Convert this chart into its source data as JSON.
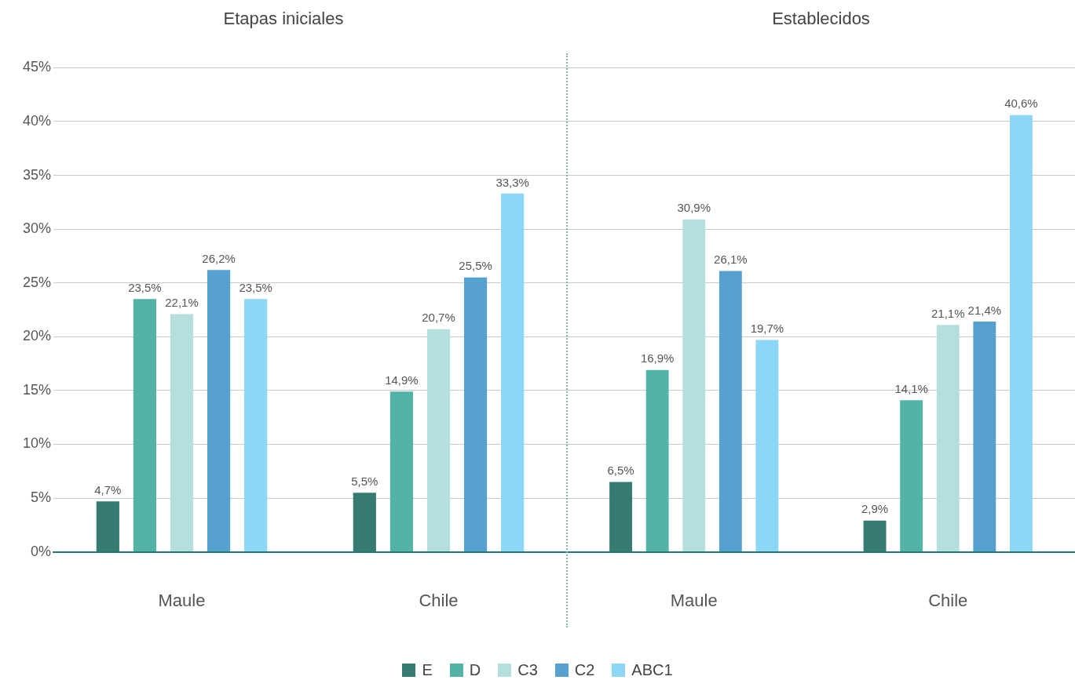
{
  "chart_data": [
    {
      "type": "bar",
      "title": "Etapas iniciales",
      "categories": [
        "Maule",
        "Chile"
      ],
      "series": [
        {
          "name": "E",
          "color": "#367b71",
          "values": [
            4.7,
            5.5
          ],
          "value_labels": [
            "4,7%",
            "5,5%"
          ]
        },
        {
          "name": "D",
          "color": "#52b3a6",
          "values": [
            23.5,
            14.9
          ],
          "value_labels": [
            "23,5%",
            "14,9%"
          ]
        },
        {
          "name": "C3",
          "color": "#b4dfdc",
          "values": [
            22.1,
            20.7
          ],
          "value_labels": [
            "22,1%",
            "20,7%"
          ]
        },
        {
          "name": "C2",
          "color": "#56a1d0",
          "values": [
            26.2,
            25.5
          ],
          "value_labels": [
            "26,2%",
            "25,5%"
          ]
        },
        {
          "name": "ABC1",
          "color": "#8bd7f5",
          "values": [
            23.5,
            33.3
          ],
          "value_labels": [
            "23,5%",
            "33,3%"
          ]
        }
      ],
      "ylim": [
        0,
        45
      ],
      "yticks": [
        {
          "value": 0,
          "label": "0%"
        },
        {
          "value": 5,
          "label": "5%"
        },
        {
          "value": 10,
          "label": "10%"
        },
        {
          "value": 15,
          "label": "15%"
        },
        {
          "value": 20,
          "label": "20%"
        },
        {
          "value": 25,
          "label": "25%"
        },
        {
          "value": 30,
          "label": "30%"
        },
        {
          "value": 35,
          "label": "35%"
        },
        {
          "value": 40,
          "label": "40%"
        },
        {
          "value": 45,
          "label": "45%"
        }
      ],
      "grid": "y",
      "legend": "bottom"
    },
    {
      "type": "bar",
      "title": "Establecidos",
      "categories": [
        "Maule",
        "Chile"
      ],
      "series": [
        {
          "color": "#367b71",
          "values": [
            6.5,
            2.9
          ],
          "value_labels": [
            "6,5%",
            "2,9%"
          ]
        },
        {
          "color": "#52b3a6",
          "values": [
            16.9,
            14.1
          ],
          "value_labels": [
            "16,9%",
            "14,1%"
          ]
        },
        {
          "color": "#b4dfdc",
          "values": [
            30.9,
            21.1
          ],
          "value_labels": [
            "30,9%",
            "21,1%"
          ]
        },
        {
          "color": "#56a1d0",
          "values": [
            26.1,
            21.4
          ],
          "value_labels": [
            "26,1%",
            "21,4%"
          ]
        },
        {
          "color": "#8bd7f5",
          "values": [
            19.7,
            40.6
          ],
          "value_labels": [
            "19,7%",
            "40,6%"
          ]
        }
      ],
      "ylim": [
        0,
        45
      ],
      "yticks": [
        0,
        5,
        10,
        15,
        20,
        25,
        30,
        35,
        40,
        45
      ],
      "grid": "y",
      "tick_labels": "x"
    }
  ]
}
